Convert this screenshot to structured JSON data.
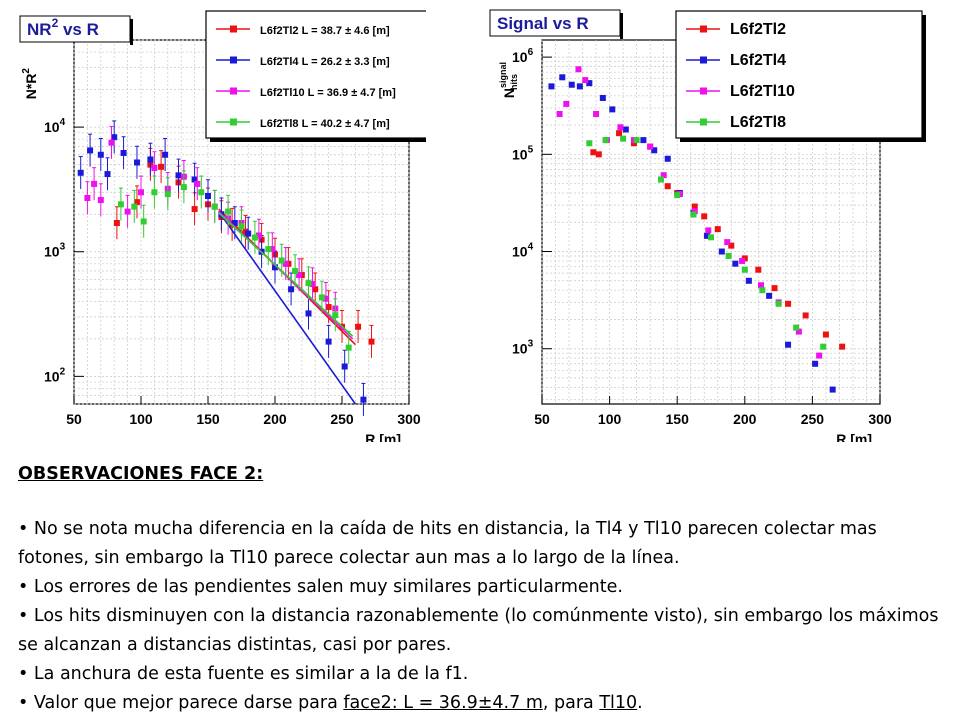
{
  "chart_data": [
    {
      "type": "scatter",
      "title": "NR² vs R",
      "title_text": "NR",
      "title_sup": "2",
      "title_tail": " vs R",
      "xlabel": "R [m]",
      "ylabel_text": "N*R",
      "ylabel_sup": "2",
      "yscale": "log",
      "xlim": [
        50,
        300
      ],
      "ylim": [
        60,
        50000
      ],
      "xticks": [
        50,
        100,
        150,
        200,
        250,
        300
      ],
      "yticks": [
        {
          "v": 100,
          "base": "10",
          "exp": "2"
        },
        {
          "v": 1000,
          "base": "10",
          "exp": "3"
        },
        {
          "v": 10000,
          "base": "10",
          "exp": "4"
        }
      ],
      "grid": true,
      "legend_placement": "top-right",
      "series": [
        {
          "name": "L6f2Tl2 L = 38.7 ± 4.6 [m]",
          "color": "#ee1111",
          "x": [
            82,
            97,
            107,
            115,
            128,
            140,
            150,
            160,
            168,
            178,
            190,
            200,
            210,
            220,
            230,
            240,
            250,
            262,
            272
          ],
          "y": [
            1700,
            2500,
            5000,
            4800,
            3600,
            2200,
            2400,
            1900,
            1650,
            1450,
            1250,
            950,
            800,
            650,
            500,
            360,
            250,
            250,
            190
          ],
          "fit": [
            [
              158,
              2200
            ],
            [
              260,
              180
            ]
          ]
        },
        {
          "name": "L6f2Tl4 L = 26.2 ± 3.3 [m]",
          "color": "#1a1ad8",
          "x": [
            55,
            62,
            70,
            75,
            80,
            87,
            97,
            107,
            118,
            128,
            140,
            150,
            160,
            170,
            180,
            190,
            200,
            212,
            225,
            240,
            252,
            266
          ],
          "y": [
            4300,
            6500,
            6000,
            4200,
            8300,
            6200,
            5200,
            5500,
            6000,
            4100,
            3800,
            2800,
            2000,
            1700,
            1400,
            1000,
            750,
            500,
            320,
            190,
            120,
            65
          ],
          "fit": [
            [
              158,
              2100
            ],
            [
              260,
              60
            ]
          ]
        },
        {
          "name": "L6f2Tl10 L = 36.9 ± 4.7 [m]",
          "color": "#ee11ee",
          "x": [
            60,
            65,
            70,
            78,
            90,
            100,
            110,
            120,
            132,
            142,
            155,
            165,
            175,
            188,
            198,
            208,
            218,
            228,
            238,
            245
          ],
          "y": [
            2700,
            3500,
            2600,
            7500,
            2100,
            3000,
            4700,
            3200,
            4000,
            3500,
            2300,
            1850,
            1700,
            1350,
            1050,
            800,
            650,
            550,
            420,
            350
          ],
          "fit": [
            [
              158,
              2100
            ],
            [
              258,
              200
            ]
          ]
        },
        {
          "name": "L6f2Tl8 L = 40.2 ± 4.7 [m]",
          "color": "#33cc33",
          "x": [
            85,
            95,
            102,
            110,
            120,
            132,
            145,
            155,
            165,
            175,
            185,
            195,
            205,
            215,
            225,
            235,
            245,
            255
          ],
          "y": [
            2400,
            2300,
            1750,
            3000,
            2900,
            3300,
            3000,
            2300,
            2100,
            1600,
            1300,
            1050,
            850,
            700,
            560,
            430,
            310,
            170
          ],
          "fit": [
            [
              158,
              2050
            ],
            [
              258,
              210
            ]
          ]
        }
      ]
    },
    {
      "type": "scatter",
      "title": "Signal vs R",
      "xlabel": "R [m]",
      "ylabel_text": "N",
      "ylabel_sup": "signal",
      "ylabel_sub": "hits",
      "yscale": "log",
      "xlim": [
        50,
        300
      ],
      "ylim": [
        270,
        1500000
      ],
      "xticks": [
        50,
        100,
        150,
        200,
        250,
        300
      ],
      "yticks": [
        {
          "v": 1000,
          "base": "10",
          "exp": "3"
        },
        {
          "v": 10000,
          "base": "10",
          "exp": "4"
        },
        {
          "v": 100000,
          "base": "10",
          "exp": "5"
        },
        {
          "v": 1000000,
          "base": "10",
          "exp": "6"
        }
      ],
      "grid": true,
      "legend_placement": "top-right",
      "series": [
        {
          "name": "L6f2Tl2",
          "color": "#ee1111",
          "x": [
            88,
            92,
            107,
            118,
            130,
            143,
            150,
            163,
            170,
            180,
            190,
            200,
            210,
            222,
            232,
            245,
            260,
            272
          ],
          "y": [
            105000,
            100000,
            165000,
            130000,
            120000,
            47000,
            40000,
            29000,
            23000,
            17000,
            11500,
            8500,
            6500,
            4200,
            2900,
            2200,
            1400,
            1050
          ]
        },
        {
          "name": "L6f2Tl4",
          "color": "#1a1ad8",
          "x": [
            57,
            65,
            72,
            78,
            85,
            95,
            102,
            112,
            125,
            133,
            143,
            152,
            162,
            172,
            183,
            193,
            203,
            218,
            232,
            252,
            265
          ],
          "y": [
            500000,
            620000,
            520000,
            500000,
            540000,
            380000,
            290000,
            180000,
            140000,
            110000,
            90000,
            40000,
            25000,
            14500,
            10000,
            7500,
            5000,
            3500,
            1100,
            700,
            380
          ]
        },
        {
          "name": "L6f2Tl10",
          "color": "#ee11ee",
          "x": [
            63,
            68,
            77,
            82,
            90,
            98,
            108,
            118,
            130,
            140,
            152,
            163,
            173,
            187,
            198,
            212,
            225,
            240,
            255
          ],
          "y": [
            260000,
            330000,
            750000,
            580000,
            260000,
            140000,
            190000,
            140000,
            120000,
            61000,
            39000,
            26000,
            16500,
            12500,
            8000,
            4500,
            3000,
            1500,
            850
          ]
        },
        {
          "name": "L6f2Tl8",
          "color": "#33cc33",
          "x": [
            85,
            97,
            110,
            120,
            138,
            150,
            162,
            175,
            188,
            200,
            213,
            225,
            238,
            258
          ],
          "y": [
            130000,
            140000,
            145000,
            140000,
            55000,
            38000,
            24000,
            14000,
            9000,
            6500,
            4000,
            2900,
            1650,
            1050
          ]
        }
      ]
    }
  ],
  "notes": {
    "heading": "OBSERVACIONES FACE 2:",
    "bullet_symbol": "•",
    "b1": "No se nota mucha diferencia en la caída de hits en distancia, la Tl4 y Tl10 parecen colectar mas fotones, sin embargo la Tl10 parece colectar aun mas a lo largo de la línea.",
    "b2": "Los errores de las pendientes salen muy similares particularmente.",
    "b3": "Los hits disminuyen con la distancia razonablemente (lo comúnmente visto), sin embargo los máximos se alcanzan a distancias distintas, casi por pares.",
    "b4": "La anchura de esta fuente es similar a la de la f1.",
    "b5_a": "Valor que mejor parece darse para ",
    "b5_b": "face2: L = 36.9±4.7 m",
    "b5_c": ", para ",
    "b5_d": "Tl10",
    "b5_e": "."
  }
}
